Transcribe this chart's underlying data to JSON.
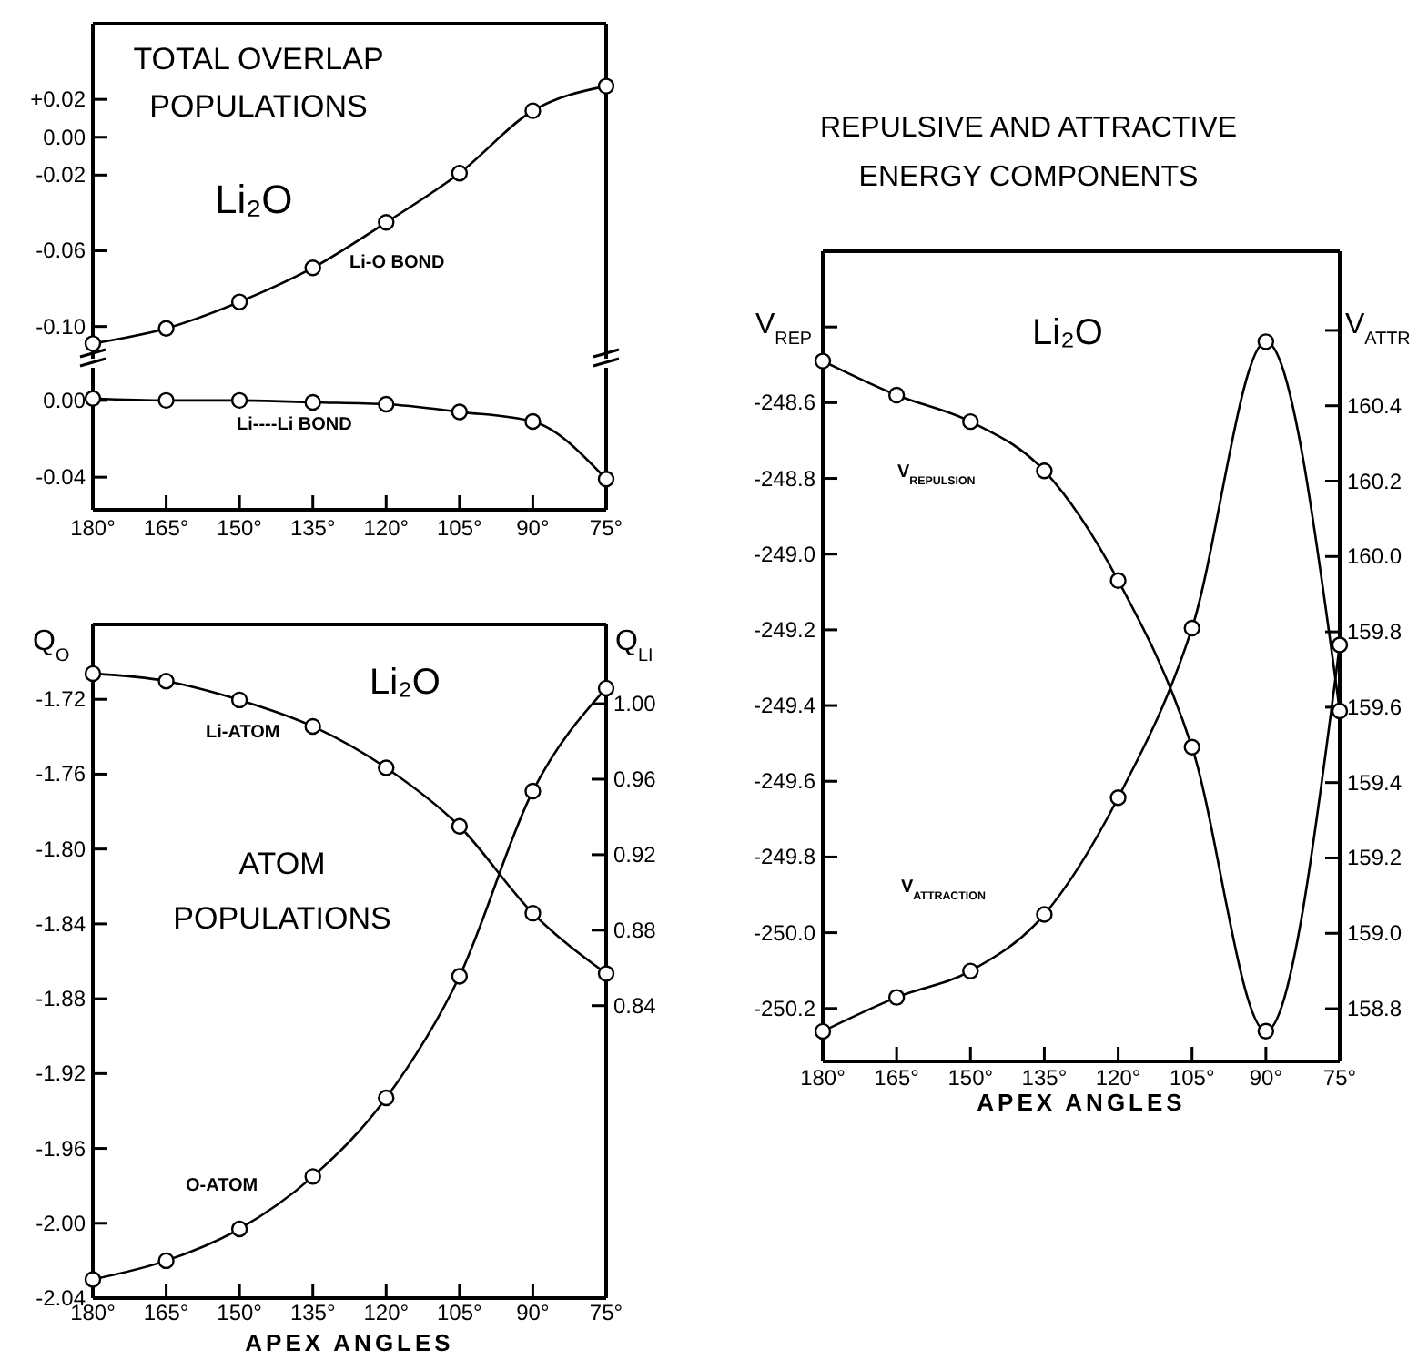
{
  "chart_data": [
    {
      "type": "line",
      "title": "TOTAL OVERLAP POPULATIONS",
      "annotations": [
        "Li₂O"
      ],
      "x": [
        180,
        165,
        150,
        135,
        120,
        105,
        90,
        75
      ],
      "xlim": [
        180,
        75
      ],
      "ylim": [
        -0.117,
        0.06
      ],
      "yticks": [
        {
          "value": 0.02,
          "label": "+0.02"
        },
        {
          "value": 0,
          "label": "0.00"
        },
        {
          "value": -0.02,
          "label": "-0.02"
        },
        {
          "value": -0.06,
          "label": "-0.06"
        },
        {
          "value": -0.1,
          "label": "-0.10"
        }
      ],
      "tick_labels": "y",
      "marker": "circle",
      "series": [
        {
          "name": "Li-O BOND",
          "color": "#000000",
          "values": [
            -0.109,
            -0.101,
            -0.087,
            -0.069,
            -0.045,
            -0.019,
            0.014,
            0.027
          ]
        }
      ]
    },
    {
      "type": "line",
      "x": [
        180,
        165,
        150,
        135,
        120,
        105,
        90,
        75
      ],
      "xlim": [
        180,
        75
      ],
      "xticks": [
        {
          "value": 180,
          "label": "180°"
        },
        {
          "value": 165,
          "label": "165°"
        },
        {
          "value": 150,
          "label": "150°"
        },
        {
          "value": 135,
          "label": "135°"
        },
        {
          "value": 120,
          "label": "120°"
        },
        {
          "value": 105,
          "label": "105°"
        },
        {
          "value": 90,
          "label": "90°"
        },
        {
          "value": 75,
          "label": "75°"
        }
      ],
      "ylim": [
        -0.057,
        0.017
      ],
      "yticks": [
        {
          "value": 0,
          "label": "0.00"
        },
        {
          "value": -0.04,
          "label": "-0.04"
        }
      ],
      "marker": "circle",
      "series": [
        {
          "name": "Li----Li BOND",
          "color": "#000000",
          "values": [
            0.001,
            0,
            0,
            -0.001,
            -0.002,
            -0.006,
            -0.011,
            -0.041
          ]
        }
      ]
    },
    {
      "type": "line",
      "title": "ATOM POPULATIONS",
      "annotations": [
        "Li₂O"
      ],
      "xlabel": "APEX ANGLES",
      "ylabel": "Q$_{O}$",
      "y2label": "Q$_{LI}$",
      "x": [
        180,
        165,
        150,
        135,
        120,
        105,
        90,
        75
      ],
      "xlim": [
        180,
        75
      ],
      "xticks": [
        {
          "value": 180,
          "label": "180°"
        },
        {
          "value": 165,
          "label": "165°"
        },
        {
          "value": 150,
          "label": "150°"
        },
        {
          "value": 135,
          "label": "135°"
        },
        {
          "value": 120,
          "label": "120°"
        },
        {
          "value": 105,
          "label": "105°"
        },
        {
          "value": 90,
          "label": "90°"
        },
        {
          "value": 75,
          "label": "75°"
        }
      ],
      "ylim": [
        -2.04,
        -1.68
      ],
      "yticks": [
        -1.72,
        -1.76,
        {
          "value": -1.8,
          "label": "-1.80"
        },
        -1.84,
        -1.88,
        -1.92,
        -1.96,
        {
          "value": -2,
          "label": "-2.00"
        },
        -2.04
      ],
      "y2lim": [
        0.685,
        1.042
      ],
      "y2ticks": [
        {
          "value": 1,
          "label": "1.00"
        },
        0.96,
        0.92,
        0.88,
        0.84
      ],
      "marker": "circle",
      "series": [
        {
          "name": "Li-ATOM",
          "color": "#000000",
          "axis": "y2",
          "values": [
            1.016,
            1.012,
            1.002,
            0.988,
            0.966,
            0.935,
            0.889,
            0.857
          ]
        },
        {
          "name": "O-ATOM",
          "color": "#000000",
          "axis": "y",
          "values": [
            -2.03,
            -2.02,
            -2.003,
            -1.975,
            -1.933,
            -1.868,
            -1.769,
            -1.714
          ]
        }
      ]
    },
    {
      "type": "line",
      "title": "REPULSIVE AND ATTRACTIVE ENERGY COMPONENTS",
      "annotations": [
        "Li₂O"
      ],
      "xlabel": "APEX ANGLES",
      "ylabel": "V$_{REP}$",
      "y2label": "V$_{ATTR}$",
      "x": [
        180,
        165,
        150,
        135,
        120,
        105,
        90,
        75
      ],
      "xlim": [
        180,
        75
      ],
      "xticks": [
        {
          "value": 180,
          "label": "180°"
        },
        {
          "value": 165,
          "label": "165°"
        },
        {
          "value": 150,
          "label": "150°"
        },
        {
          "value": 135,
          "label": "135°"
        },
        {
          "value": 120,
          "label": "120°"
        },
        {
          "value": 105,
          "label": "105°"
        },
        {
          "value": 90,
          "label": "90°"
        },
        {
          "value": 75,
          "label": "75°"
        }
      ],
      "ylim": [
        -250.34,
        -248.2
      ],
      "yticks": [
        {
          "value": -248.4,
          "label": null
        },
        -248.6,
        -248.8,
        {
          "value": -249,
          "label": "-249.0"
        },
        -249.2,
        -249.4,
        -249.6,
        -249.8,
        {
          "value": -250,
          "label": "-250.0"
        },
        -250.2
      ],
      "y2lim": [
        158.66,
        160.81
      ],
      "y2ticks": [
        {
          "value": 160.6,
          "label": null
        },
        160.4,
        160.2,
        {
          "value": 160,
          "label": "160.0"
        },
        159.8,
        159.6,
        159.4,
        159.2,
        {
          "value": 159,
          "label": "159.0"
        },
        158.8
      ],
      "marker": "circle",
      "series": [
        {
          "name": "V$_{REPULSION}$",
          "color": "#000000",
          "axis": "y",
          "values": [
            -248.49,
            -248.58,
            -248.65,
            -248.78,
            -249.07,
            -249.51,
            -250.26,
            -249.24
          ]
        },
        {
          "name": "V$_{ATTRACTION}$",
          "color": "#000000",
          "axis": "y2",
          "values": [
            158.74,
            158.83,
            158.9,
            159.05,
            159.36,
            159.81,
            160.57,
            159.59
          ]
        }
      ]
    }
  ]
}
